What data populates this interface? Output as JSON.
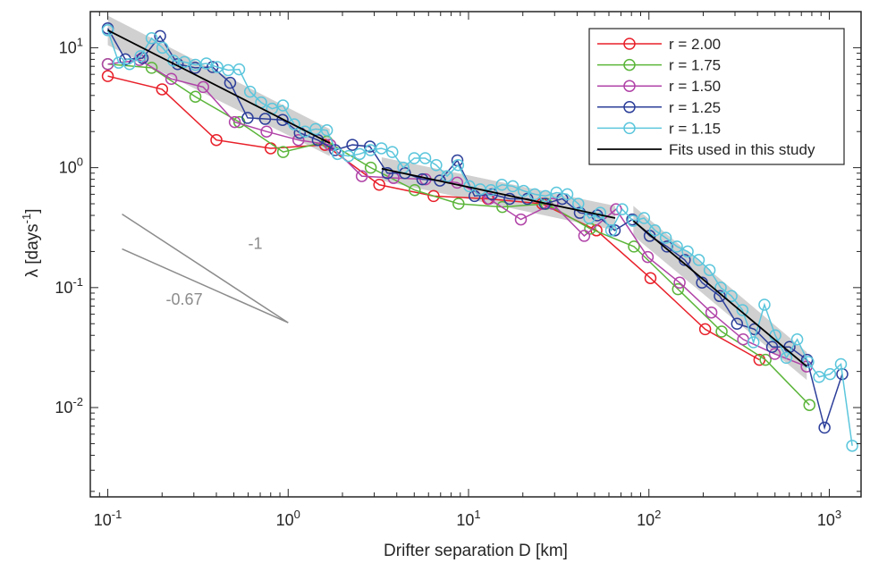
{
  "chart_data": {
    "type": "line",
    "xscale": "log",
    "yscale": "log",
    "xlim": [
      0.08,
      1500
    ],
    "ylim": [
      0.0018,
      20
    ],
    "xlabel": "Drifter separation D [km]",
    "ylabel": "λ [days",
    "ylabel_sup": "-1",
    "ylabel_end": "]",
    "xticks": [
      {
        "value": 0.1,
        "base": "10",
        "exp": "-1"
      },
      {
        "value": 1,
        "base": "10",
        "exp": "0"
      },
      {
        "value": 10,
        "base": "10",
        "exp": "1"
      },
      {
        "value": 100,
        "base": "10",
        "exp": "2"
      },
      {
        "value": 1000,
        "base": "10",
        "exp": "3"
      }
    ],
    "yticks": [
      {
        "value": 0.01,
        "base": "10",
        "exp": "-2"
      },
      {
        "value": 0.1,
        "base": "10",
        "exp": "-1"
      },
      {
        "value": 1,
        "base": "10",
        "exp": "0"
      },
      {
        "value": 10,
        "base": "10",
        "exp": "1"
      }
    ],
    "legend_position": "top-right",
    "series": [
      {
        "name": "r = 2.00",
        "color": "#e8202a",
        "marker": "circle",
        "x": [
          0.1,
          0.2,
          0.4,
          0.8,
          1.6,
          3.2,
          6.4,
          12.8,
          25.6,
          51.2,
          102,
          205,
          410
        ],
        "y": [
          5.8,
          4.5,
          1.7,
          1.45,
          1.55,
          0.72,
          0.58,
          0.55,
          0.5,
          0.3,
          0.12,
          0.045,
          0.025
        ]
      },
      {
        "name": "r = 1.75",
        "color": "#5bb53a",
        "marker": "circle",
        "x": [
          0.1,
          0.175,
          0.306,
          0.536,
          0.938,
          1.64,
          2.87,
          5.03,
          8.8,
          15.4,
          27,
          47.2,
          82.6,
          145,
          253,
          443,
          776
        ],
        "y": [
          7.3,
          6.8,
          3.9,
          2.4,
          1.35,
          1.65,
          1.0,
          0.65,
          0.5,
          0.47,
          0.5,
          0.31,
          0.22,
          0.097,
          0.043,
          0.025,
          0.0105
        ]
      },
      {
        "name": "r = 1.50",
        "color": "#b144a8",
        "marker": "circle",
        "x": [
          0.1,
          0.15,
          0.225,
          0.338,
          0.506,
          0.759,
          1.14,
          1.71,
          2.56,
          3.84,
          5.77,
          8.65,
          13.0,
          19.5,
          29.2,
          43.8,
          65.7,
          98.5,
          148,
          222,
          333,
          499,
          749
        ],
        "y": [
          7.3,
          7.9,
          5.5,
          4.7,
          2.4,
          2.0,
          1.7,
          1.55,
          0.85,
          0.82,
          0.8,
          0.75,
          0.55,
          0.37,
          0.5,
          0.27,
          0.45,
          0.18,
          0.11,
          0.062,
          0.037,
          0.028,
          0.022
        ]
      },
      {
        "name": "r = 1.25",
        "color": "#2d3f9a",
        "marker": "circle",
        "x": [
          0.1,
          0.125,
          0.156,
          0.195,
          0.244,
          0.305,
          0.381,
          0.477,
          0.596,
          0.745,
          0.931,
          1.16,
          1.46,
          1.82,
          2.27,
          2.84,
          3.55,
          4.44,
          5.55,
          6.94,
          8.67,
          10.8,
          13.5,
          16.9,
          21.2,
          26.5,
          33.1,
          41.4,
          51.7,
          64.6,
          80.8,
          101,
          126,
          158,
          197,
          247,
          308,
          385,
          482,
          602,
          753,
          941,
          1180
        ],
        "y": [
          14.5,
          8.0,
          8.2,
          12.5,
          7.3,
          6.8,
          6.9,
          5.1,
          2.6,
          2.55,
          2.5,
          1.95,
          1.7,
          1.4,
          1.55,
          1.5,
          0.9,
          0.9,
          0.8,
          0.78,
          1.15,
          0.58,
          0.6,
          0.55,
          0.55,
          0.5,
          0.55,
          0.42,
          0.4,
          0.3,
          0.37,
          0.27,
          0.22,
          0.17,
          0.11,
          0.085,
          0.05,
          0.045,
          0.032,
          0.032,
          0.025,
          0.0068,
          0.019
        ]
      },
      {
        "name": "r = 1.15",
        "color": "#5bc6dc",
        "marker": "circle",
        "x": [
          0.1,
          0.115,
          0.132,
          0.152,
          0.175,
          0.201,
          0.231,
          0.266,
          0.306,
          0.352,
          0.405,
          0.465,
          0.535,
          0.615,
          0.708,
          0.814,
          0.936,
          1.08,
          1.24,
          1.42,
          1.64,
          1.88,
          2.16,
          2.49,
          2.86,
          3.29,
          3.78,
          4.35,
          5.0,
          5.75,
          6.62,
          7.61,
          8.75,
          10.1,
          11.6,
          13.3,
          15.3,
          17.6,
          20.2,
          23.3,
          26.7,
          30.7,
          35.3,
          40.6,
          46.7,
          53.7,
          61.8,
          71.1,
          81.7,
          94.0,
          108,
          124,
          143,
          164,
          189,
          217,
          250,
          287,
          330,
          380,
          437,
          502,
          578,
          664,
          764,
          878,
          1010,
          1160,
          1340
        ],
        "y": [
          14.0,
          7.5,
          7.3,
          8.5,
          12.0,
          10.0,
          7.8,
          7.6,
          7.2,
          7.4,
          6.9,
          6.5,
          6.6,
          4.3,
          3.5,
          3.1,
          3.3,
          2.3,
          2.0,
          2.1,
          2.05,
          1.3,
          1.25,
          1.3,
          1.4,
          1.45,
          1.35,
          1.0,
          1.2,
          1.2,
          1.05,
          0.85,
          1.05,
          0.7,
          0.66,
          0.65,
          0.72,
          0.7,
          0.64,
          0.6,
          0.58,
          0.62,
          0.6,
          0.5,
          0.38,
          0.42,
          0.3,
          0.45,
          0.36,
          0.38,
          0.3,
          0.26,
          0.22,
          0.2,
          0.17,
          0.14,
          0.1,
          0.085,
          0.065,
          0.035,
          0.072,
          0.04,
          0.026,
          0.037,
          0.024,
          0.018,
          0.019,
          0.023,
          0.0048
        ]
      },
      {
        "name": "Fits used in this study",
        "color": "#000000",
        "marker": "none",
        "segments": [
          {
            "x": [
              0.1,
              1.7
            ],
            "y": [
              14.0,
              1.6
            ]
          },
          {
            "x": [
              3.3,
              65
            ],
            "y": [
              0.98,
              0.38
            ]
          },
          {
            "x": [
              82,
              750
            ],
            "y": [
              0.36,
              0.022
            ]
          }
        ]
      }
    ],
    "confidence_bands": [
      {
        "x": [
          0.1,
          1.7
        ],
        "upper": [
          18.5,
          2.1
        ],
        "lower": [
          10.5,
          1.25
        ]
      },
      {
        "x": [
          3.3,
          65
        ],
        "upper": [
          1.22,
          0.48
        ],
        "lower": [
          0.78,
          0.3
        ]
      },
      {
        "x": [
          82,
          750
        ],
        "upper": [
          0.48,
          0.029
        ],
        "lower": [
          0.27,
          0.017
        ]
      }
    ],
    "slope_lines": [
      {
        "x": [
          0.12,
          1.0
        ],
        "y": [
          0.41,
          0.051
        ],
        "label": "-1",
        "label_x": 0.6,
        "label_y": 0.21
      },
      {
        "x": [
          0.12,
          1.0
        ],
        "y": [
          0.21,
          0.051
        ],
        "label": "-0.67",
        "label_x": 0.21,
        "label_y": 0.072
      }
    ]
  }
}
